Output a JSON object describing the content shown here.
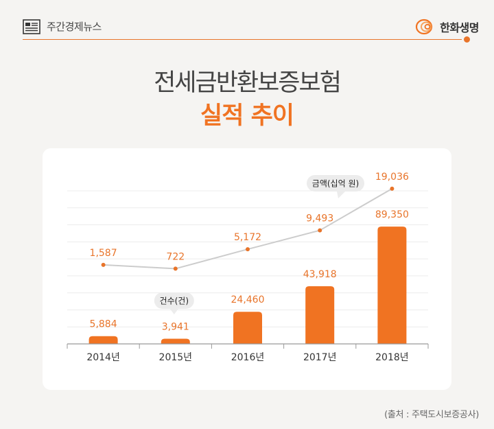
{
  "header": {
    "series_name": "주간경제뉴스",
    "brand_name": "한화생명",
    "accent_color": "#e8742a"
  },
  "title": {
    "line1": "전세금반환보증보험",
    "line2": "실적 추이"
  },
  "chart_data": {
    "type": "bar",
    "categories": [
      "2014년",
      "2015년",
      "2016년",
      "2017년",
      "2018년"
    ],
    "series": [
      {
        "name": "건수(건)",
        "type": "bar",
        "values": [
          5884,
          3941,
          24460,
          43918,
          89350
        ],
        "color": "#f07322"
      },
      {
        "name": "금액(십억 원)",
        "type": "line",
        "values": [
          1587,
          722,
          5172,
          9493,
          19036
        ],
        "color": "#cccccc"
      }
    ],
    "bar_ylim": [
      0,
      120000
    ],
    "grid": true,
    "legend": "callout"
  },
  "source": "(출처 : 주택도시보증공사)"
}
